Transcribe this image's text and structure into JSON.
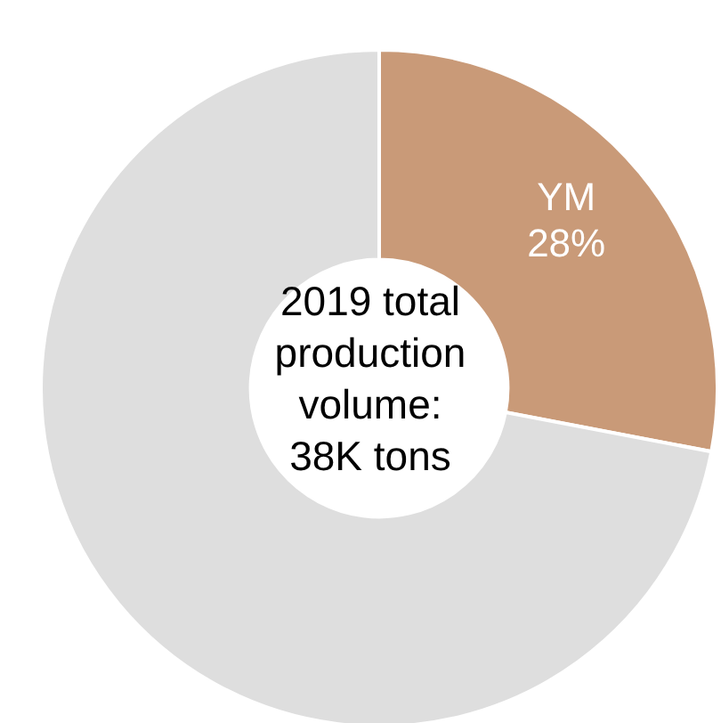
{
  "chart_data": {
    "type": "donut",
    "title": "2019 total production volume: 38K tons",
    "categories": [
      "YM",
      null
    ],
    "values": [
      28,
      72
    ],
    "colors": [
      "#c99a78",
      "#dedede"
    ],
    "value_labels": [
      "28%",
      null
    ]
  }
}
